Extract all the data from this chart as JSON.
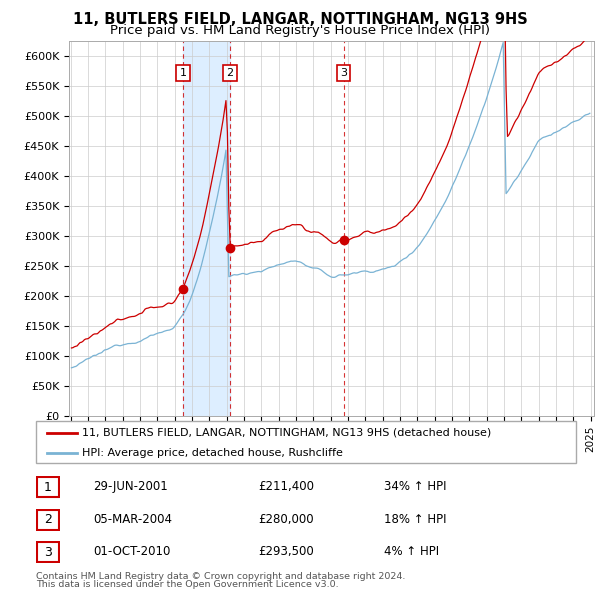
{
  "title": "11, BUTLERS FIELD, LANGAR, NOTTINGHAM, NG13 9HS",
  "subtitle": "Price paid vs. HM Land Registry's House Price Index (HPI)",
  "title_fontsize": 10.5,
  "subtitle_fontsize": 9.5,
  "ylabel_ticks": [
    "£0",
    "£50K",
    "£100K",
    "£150K",
    "£200K",
    "£250K",
    "£300K",
    "£350K",
    "£400K",
    "£450K",
    "£500K",
    "£550K",
    "£600K"
  ],
  "ytick_vals": [
    0,
    50000,
    100000,
    150000,
    200000,
    250000,
    300000,
    350000,
    400000,
    450000,
    500000,
    550000,
    600000
  ],
  "ylim": [
    0,
    625000
  ],
  "red_color": "#cc0000",
  "blue_color": "#7ab3d4",
  "fill_color": "#ddeeff",
  "grid_color": "#cccccc",
  "background_color": "#ffffff",
  "legend_label_red": "11, BUTLERS FIELD, LANGAR, NOTTINGHAM, NG13 9HS (detached house)",
  "legend_label_blue": "HPI: Average price, detached house, Rushcliffe",
  "transactions": [
    {
      "date_dec": 2001.49,
      "price": 211400,
      "label": "1",
      "date_str": "29-JUN-2001",
      "pct": "34%"
    },
    {
      "date_dec": 2004.18,
      "price": 280000,
      "label": "2",
      "date_str": "05-MAR-2004",
      "pct": "18%"
    },
    {
      "date_dec": 2010.75,
      "price": 293500,
      "label": "3",
      "date_str": "01-OCT-2010",
      "pct": "4%"
    }
  ],
  "footer1": "Contains HM Land Registry data © Crown copyright and database right 2024.",
  "footer2": "This data is licensed under the Open Government Licence v3.0."
}
